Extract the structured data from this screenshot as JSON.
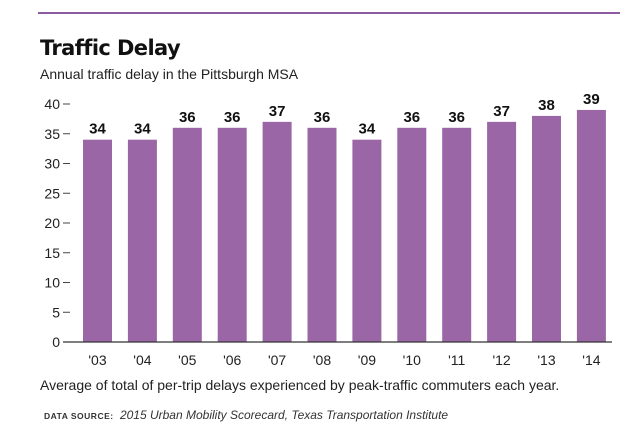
{
  "chart_data": {
    "type": "bar",
    "title": "Traffic Delay",
    "subtitle": "Annual traffic delay in the Pittsburgh MSA",
    "categories": [
      "'03",
      "'04",
      "'05",
      "'06",
      "'07",
      "'08",
      "'09",
      "'10",
      "'11",
      "'12",
      "'13",
      "'14"
    ],
    "values": [
      34,
      34,
      36,
      36,
      37,
      36,
      34,
      36,
      36,
      37,
      38,
      39
    ],
    "ylim": [
      0,
      40
    ],
    "yticks": [
      0,
      5,
      10,
      15,
      20,
      25,
      30,
      35,
      40
    ],
    "xlabel": "",
    "ylabel": "",
    "data_labels": true,
    "grid": false,
    "bar_color": "#9b66a6"
  },
  "caption": "Average of total of per-trip delays experienced by peak-traffic commuters each year.",
  "source": {
    "label": "DATA SOURCE:",
    "text": "2015 Urban Mobility Scorecard, Texas Transportation Institute"
  },
  "colors": {
    "accent_rule": "#8c5aa0",
    "bar": "#9b66a6"
  }
}
